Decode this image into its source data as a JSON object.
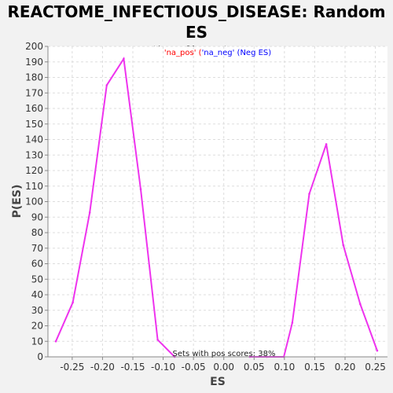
{
  "chart_data": {
    "type": "line",
    "title_line1": "REACTOME_INFECTIOUS_DISEASE: Random ES",
    "title_line2": "distribution",
    "xlabel": "ES",
    "ylabel": "P(ES)",
    "xlim": [
      -0.29,
      0.27
    ],
    "ylim": [
      0,
      200
    ],
    "x_ticks": [
      "-0.25",
      "-0.20",
      "-0.15",
      "-0.10",
      "-0.05",
      "0.00",
      "0.05",
      "0.10",
      "0.15",
      "0.20",
      "0.25"
    ],
    "y_ticks": [
      "0",
      "10",
      "20",
      "30",
      "40",
      "50",
      "60",
      "70",
      "80",
      "90",
      "100",
      "110",
      "120",
      "130",
      "140",
      "150",
      "160",
      "170",
      "180",
      "190",
      "200"
    ],
    "grid": true,
    "legend": {
      "pos_text": "'na_pos'",
      "sep_text": " (",
      "neg_text": "'na_neg' (Neg ES)",
      "pos_color": "#ff0000",
      "neg_color": "#0000ff"
    },
    "annotation": "Sets with pos scores: 38%",
    "series": [
      {
        "color": "#ee33ee",
        "x": [
          -0.277,
          -0.249,
          -0.221,
          -0.193,
          -0.165,
          -0.137,
          -0.109,
          -0.081
        ],
        "y": [
          10,
          35,
          93,
          175,
          192,
          108,
          11,
          0
        ]
      },
      {
        "color": "#ee33ee",
        "x": [
          0.043,
          0.071,
          0.099,
          0.113,
          0.141,
          0.169,
          0.197,
          0.225,
          0.253
        ],
        "y": [
          0,
          0,
          0,
          22,
          105,
          137,
          72,
          34,
          4
        ]
      }
    ]
  }
}
